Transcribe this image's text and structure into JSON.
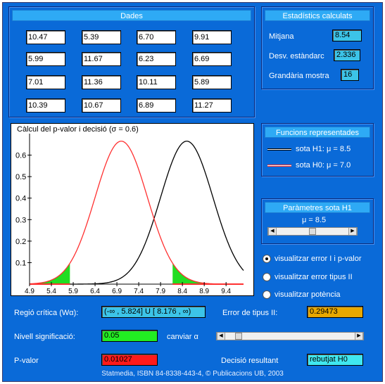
{
  "data_panel": {
    "title": "Dades",
    "cells": [
      "10.47",
      "5.39",
      "6.70",
      "9.91",
      "5.99",
      "11.67",
      "6.23",
      "6.69",
      "7.01",
      "11.36",
      "10.11",
      "5.89",
      "10.39",
      "10.67",
      "6.89",
      "11.27"
    ]
  },
  "stats_panel": {
    "title": "Estadístics calculats",
    "mean_label": "Mitjana",
    "mean_value": "8.54",
    "sd_label": "Desv. estàndarc",
    "sd_value": "2.336",
    "n_label": "Grandària mostra",
    "n_value": "16"
  },
  "functions_panel": {
    "title": "Funcions  representades",
    "h1_label": "sota H1: μ = 8.5",
    "h0_label": "sota H0: μ = 7.0"
  },
  "params_panel": {
    "title": "Paràmetres sota H1",
    "mu_label": "μ = 8.5"
  },
  "radios": [
    {
      "label": "visualitzar error I i p-valor",
      "selected": true
    },
    {
      "label": "visualitzar error tipus II",
      "selected": false
    },
    {
      "label": "visualitzar potència",
      "selected": false
    }
  ],
  "bottom": {
    "critical_label": "Regió crítica (Wα):",
    "critical_value": "(-∞ , 5.824] U [ 8.176 , ∞)",
    "type2_label": "Error de tipus II:",
    "type2_value": "0.29473",
    "alpha_label": "Nivell significació:",
    "alpha_value": "0.05",
    "change_alpha_label": "canviar α",
    "pvalue_label": "P-valor",
    "pvalue_value": "0.01027",
    "decision_label": "Decisió resultant",
    "decision_value": "rebutjat H0",
    "footer": "Statmedia, ISBN 84-8338-443-4, © Publicacions UB, 2003"
  },
  "colors": {
    "background": "#0a6ad8",
    "panel_header": "#2eaaf5",
    "stat_box": "#3cc4e8",
    "h1_curve": "#000000",
    "h0_curve": "#ff3030",
    "critical_fill": "#22dd22",
    "type2_box": "#e8a800",
    "alpha_box": "#22ee22",
    "pvalue_box": "#ff1a1a",
    "decision_box": "#40e8f0"
  },
  "chart_data": {
    "type": "line",
    "title": "Càlcul del p-valor i decisió (σ = 0.6)",
    "xlim": [
      4.9,
      9.8
    ],
    "ylim": [
      0,
      0.7
    ],
    "x_ticks": [
      "4.9",
      "5.4",
      "5.9",
      "6.4",
      "6.9",
      "7.4",
      "7.9",
      "8.4",
      "8.9",
      "9.4"
    ],
    "y_ticks": [
      "0.1",
      "0.2",
      "0.3",
      "0.4",
      "0.5",
      "0.6"
    ],
    "series": [
      {
        "name": "sota H1: μ = 8.5",
        "mean": 8.5,
        "sd": 0.6,
        "color": "#000000"
      },
      {
        "name": "sota H0: μ = 7.0",
        "mean": 7.0,
        "sd": 0.6,
        "color": "#ff3030"
      }
    ],
    "critical_region": [
      [
        4.9,
        5.824
      ],
      [
        8.176,
        9.8
      ]
    ],
    "grid": false
  }
}
